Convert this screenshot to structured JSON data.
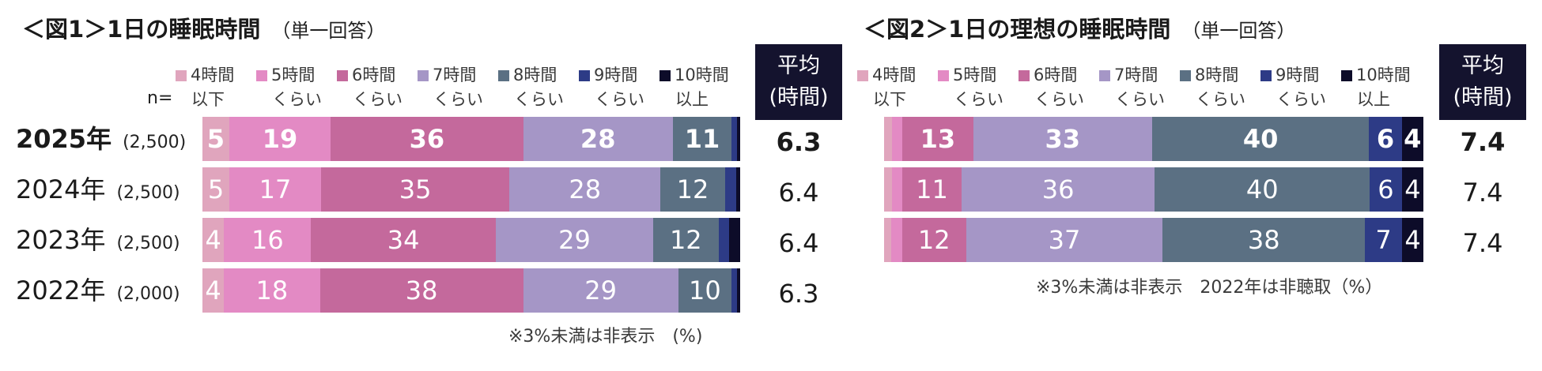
{
  "chart_data": [
    {
      "type": "bar",
      "orientation": "horizontal",
      "stacked": true,
      "title": "＜図1＞1日の睡眠時間",
      "subtitle": "（単一回答）",
      "n_label": "n=",
      "average_header": [
        "平均",
        "(時間)"
      ],
      "categories": [
        {
          "year": "2025年",
          "n": "(2,500)",
          "average": "6.3",
          "bold": true
        },
        {
          "year": "2024年",
          "n": "(2,500)",
          "average": "6.4",
          "bold": false
        },
        {
          "year": "2023年",
          "n": "(2,500)",
          "average": "6.4",
          "bold": false
        },
        {
          "year": "2022年",
          "n": "(2,000)",
          "average": "6.3",
          "bold": false
        }
      ],
      "series": [
        {
          "name": [
            "4時間",
            "以下"
          ],
          "color": "#e0a5bd",
          "values": [
            5,
            5,
            4,
            4
          ],
          "labels": [
            "5",
            "5",
            "4",
            "4"
          ]
        },
        {
          "name": [
            "5時間",
            "くらい"
          ],
          "color": "#e38ac4",
          "values": [
            19,
            17,
            16,
            18
          ],
          "labels": [
            "19",
            "17",
            "16",
            "18"
          ]
        },
        {
          "name": [
            "6時間",
            "くらい"
          ],
          "color": "#c4699c",
          "values": [
            36,
            35,
            34,
            38
          ],
          "labels": [
            "36",
            "35",
            "34",
            "38"
          ]
        },
        {
          "name": [
            "7時間",
            "くらい"
          ],
          "color": "#a596c6",
          "values": [
            28,
            28,
            29,
            29
          ],
          "labels": [
            "28",
            "28",
            "29",
            "29"
          ]
        },
        {
          "name": [
            "8時間",
            "くらい"
          ],
          "color": "#5b7083",
          "values": [
            11,
            12,
            12,
            10
          ],
          "labels": [
            "11",
            "12",
            "12",
            "10"
          ]
        },
        {
          "name": [
            "9時間",
            "くらい"
          ],
          "color": "#2d3b86",
          "values": [
            1,
            2,
            2,
            1
          ],
          "labels": [
            "",
            "",
            "",
            ""
          ]
        },
        {
          "name": [
            "10時間",
            "以上"
          ],
          "color": "#0d0c29",
          "values": [
            0.6,
            0.8,
            2,
            0.6
          ],
          "labels": [
            "",
            "",
            "",
            ""
          ]
        }
      ],
      "xlim": [
        0,
        100
      ],
      "note": "※3%未満は非表示　(%)"
    },
    {
      "type": "bar",
      "orientation": "horizontal",
      "stacked": true,
      "title": "＜図2＞1日の理想の睡眠時間",
      "subtitle": "（単一回答）",
      "average_header": [
        "平均",
        "(時間)"
      ],
      "categories": [
        {
          "year": "2025年",
          "average": "7.4",
          "bold": true
        },
        {
          "year": "2024年",
          "average": "7.4",
          "bold": false
        },
        {
          "year": "2023年",
          "average": "7.4",
          "bold": false
        }
      ],
      "series": [
        {
          "name": [
            "4時間",
            "以下"
          ],
          "color": "#e0a5bd",
          "values": [
            1.4,
            1.4,
            1.4
          ],
          "labels": [
            "",
            "",
            ""
          ]
        },
        {
          "name": [
            "5時間",
            "くらい"
          ],
          "color": "#e38ac4",
          "values": [
            2,
            2,
            2
          ],
          "labels": [
            "",
            "",
            ""
          ]
        },
        {
          "name": [
            "6時間",
            "くらい"
          ],
          "color": "#c4699c",
          "values": [
            13,
            11,
            12
          ],
          "labels": [
            "13",
            "11",
            "12"
          ]
        },
        {
          "name": [
            "7時間",
            "くらい"
          ],
          "color": "#a596c6",
          "values": [
            33,
            36,
            37
          ],
          "labels": [
            "33",
            "36",
            "37"
          ]
        },
        {
          "name": [
            "8時間",
            "くらい"
          ],
          "color": "#5b7083",
          "values": [
            40,
            40,
            38
          ],
          "labels": [
            "40",
            "40",
            "38"
          ]
        },
        {
          "name": [
            "9時間",
            "くらい"
          ],
          "color": "#2d3b86",
          "values": [
            6,
            6,
            7
          ],
          "labels": [
            "6",
            "6",
            "7"
          ]
        },
        {
          "name": [
            "10時間",
            "以上"
          ],
          "color": "#0d0c29",
          "values": [
            4,
            4,
            4
          ],
          "labels": [
            "4",
            "4",
            "4"
          ]
        }
      ],
      "xlim": [
        0,
        100
      ],
      "note": "※3%未満は非表示　2022年は非聴取（%）"
    }
  ]
}
